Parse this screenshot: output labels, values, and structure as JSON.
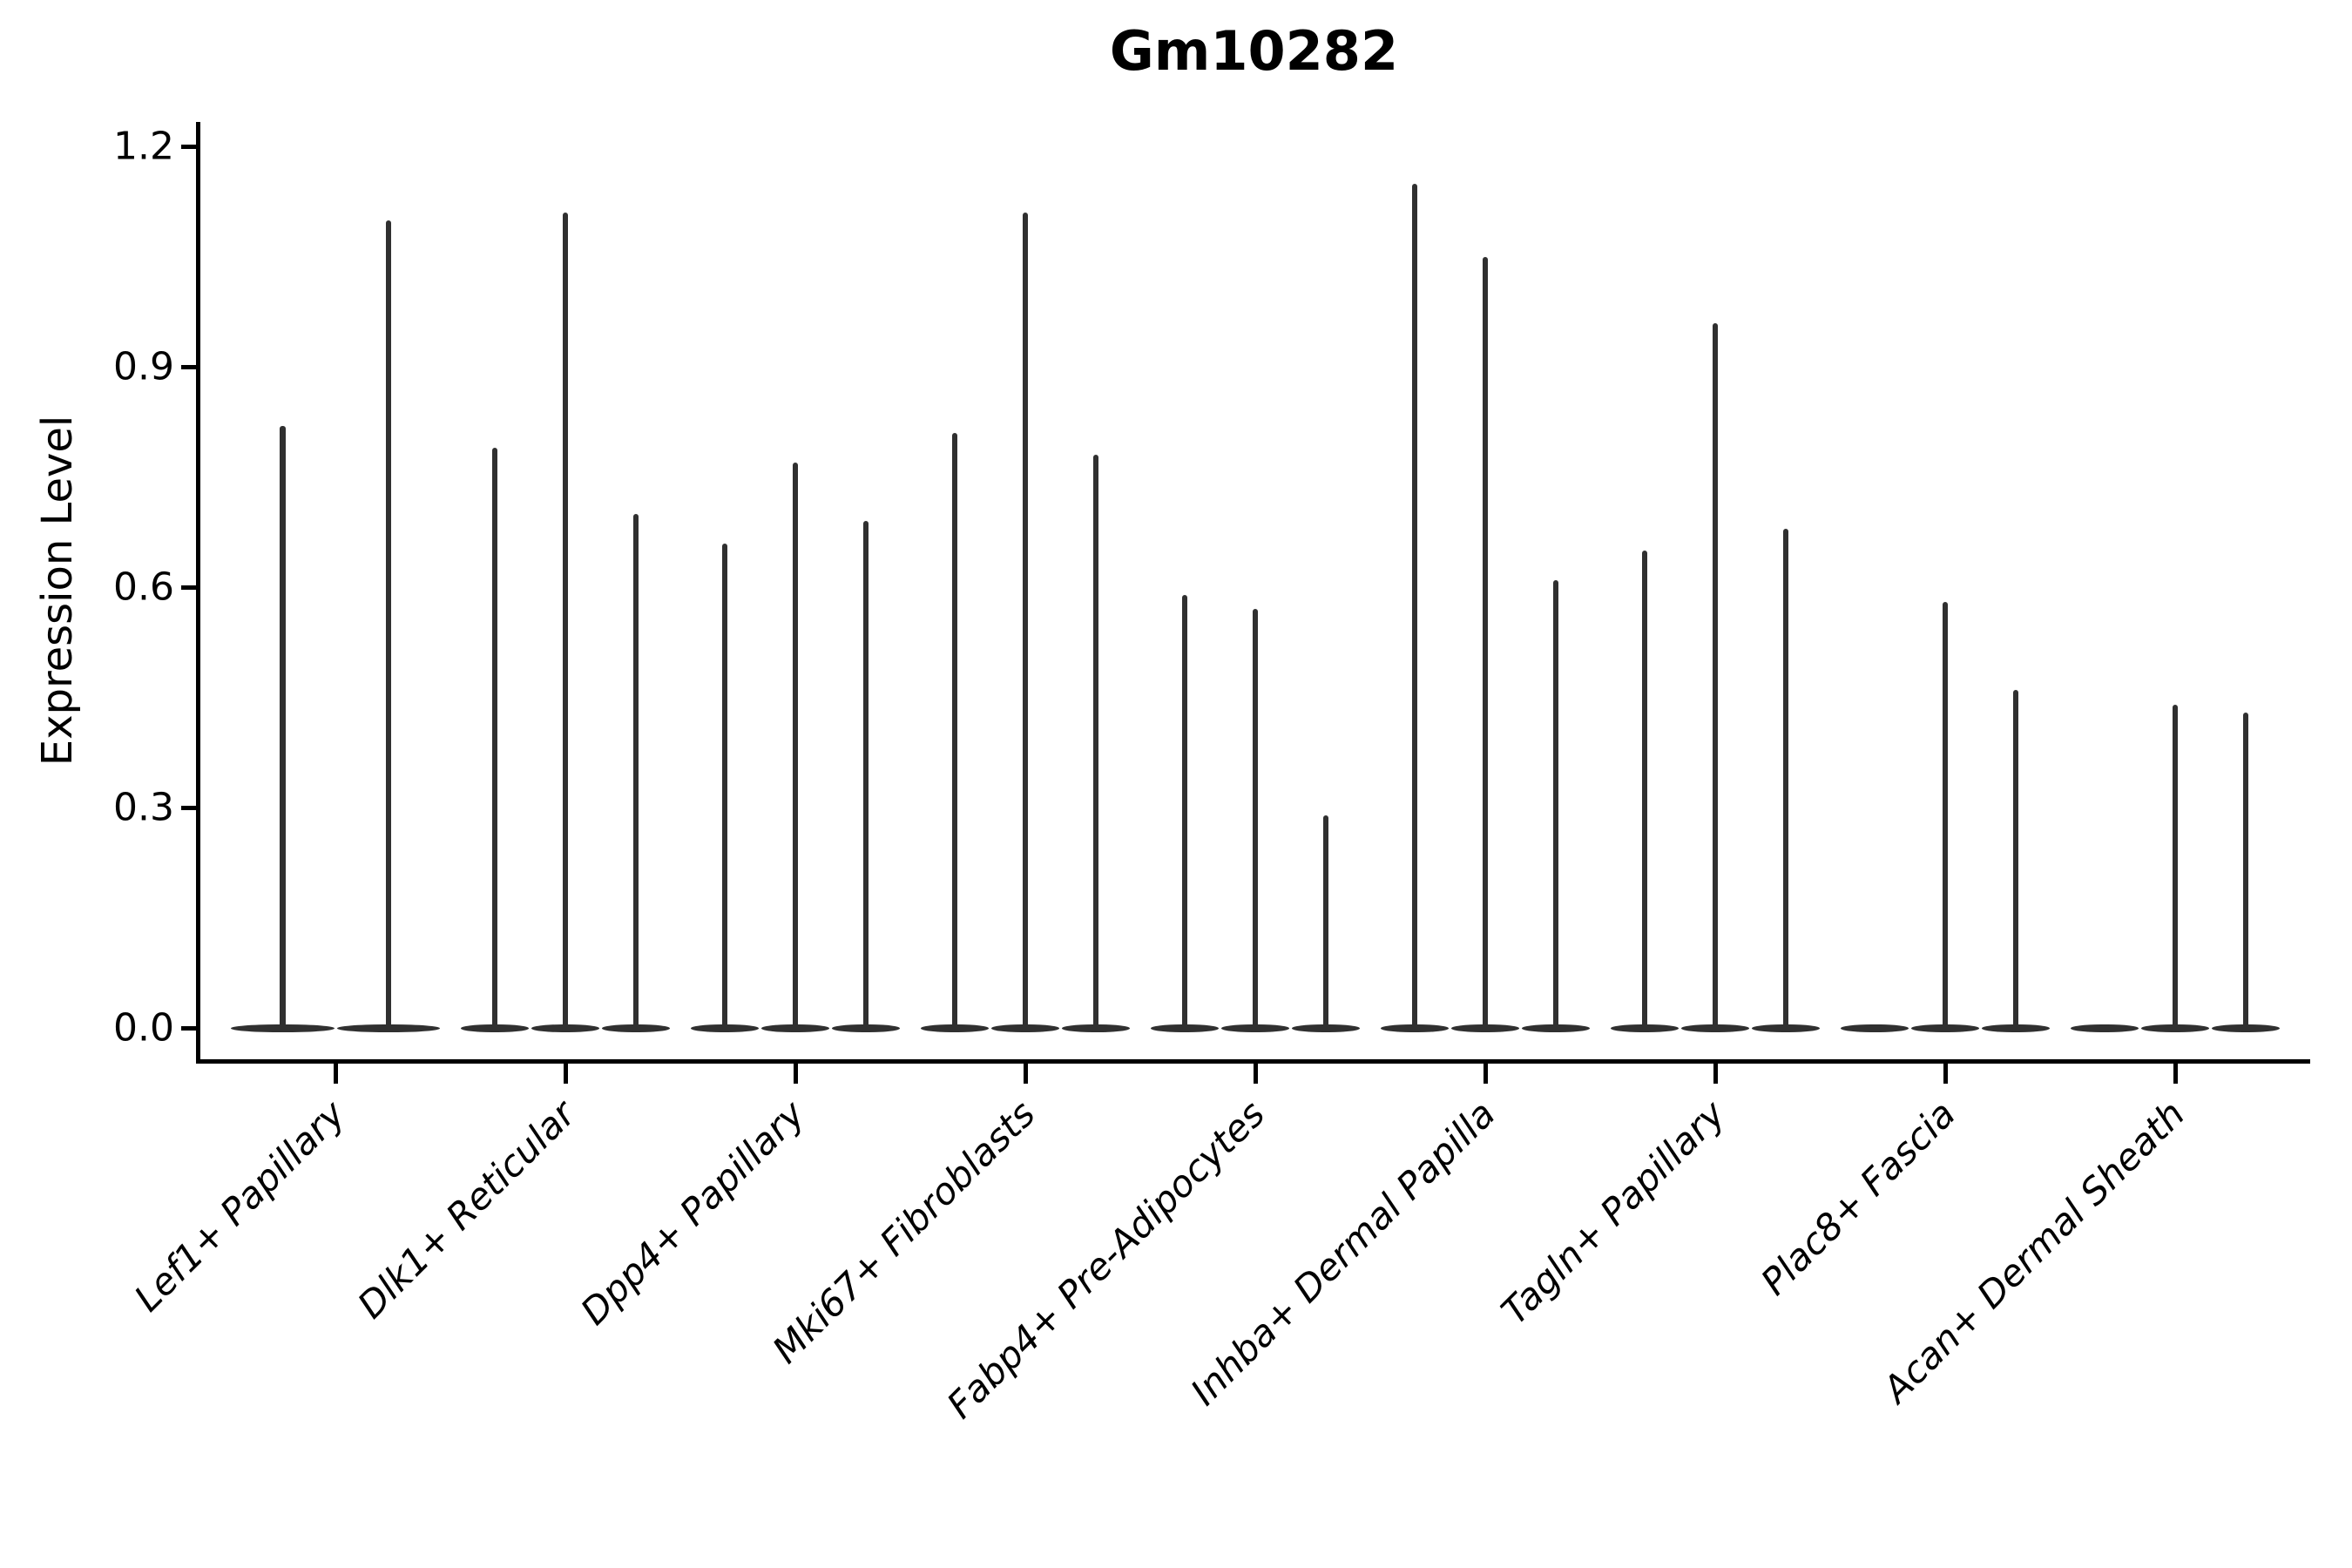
{
  "title": "Gm10282",
  "ylabel": "Expression Level",
  "chart_data": {
    "type": "violin",
    "title": "Gm10282",
    "xlabel": "",
    "ylabel": "Expression Level",
    "ylim": [
      -0.04,
      1.23
    ],
    "yticks": [
      0.0,
      0.3,
      0.6,
      0.9,
      1.2
    ],
    "grid": false,
    "legend": false,
    "line_color": "#303030",
    "axis_color": "#000000",
    "categories": [
      "Lef1+ Papillary",
      "Dlk1+ Reticular",
      "Dpp4+ Papillary",
      "Mki67+ Fibroblasts",
      "Fabp4+ Pre-Adipocytes",
      "Inhba+ Dermal Papilla",
      "Tagln+ Papillary",
      "Plac8+ Fascia",
      "Acan+ Dermal Sheath"
    ],
    "groups": [
      {
        "label": "Lef1+ Papillary",
        "violin_max_values": [
          0.82,
          1.1
        ]
      },
      {
        "label": "Dlk1+ Reticular",
        "violin_max_values": [
          0.79,
          1.11,
          0.7
        ]
      },
      {
        "label": "Dpp4+ Papillary",
        "violin_max_values": [
          0.66,
          0.77,
          0.69
        ]
      },
      {
        "label": "Mki67+ Fibroblasts",
        "violin_max_values": [
          0.81,
          1.11,
          0.78
        ]
      },
      {
        "label": "Fabp4+ Pre-Adipocytes",
        "violin_max_values": [
          0.59,
          0.57,
          0.29
        ]
      },
      {
        "label": "Inhba+ Dermal Papilla",
        "violin_max_values": [
          1.15,
          1.05,
          0.61
        ]
      },
      {
        "label": "Tagln+ Papillary",
        "violin_max_values": [
          0.65,
          0.96,
          0.68
        ]
      },
      {
        "label": "Plac8+ Fascia",
        "violin_max_values": [
          0.0,
          0.58,
          0.46
        ]
      },
      {
        "label": "Acan+ Dermal Sheath",
        "violin_max_values": [
          0.0,
          0.44,
          0.43
        ]
      }
    ]
  }
}
